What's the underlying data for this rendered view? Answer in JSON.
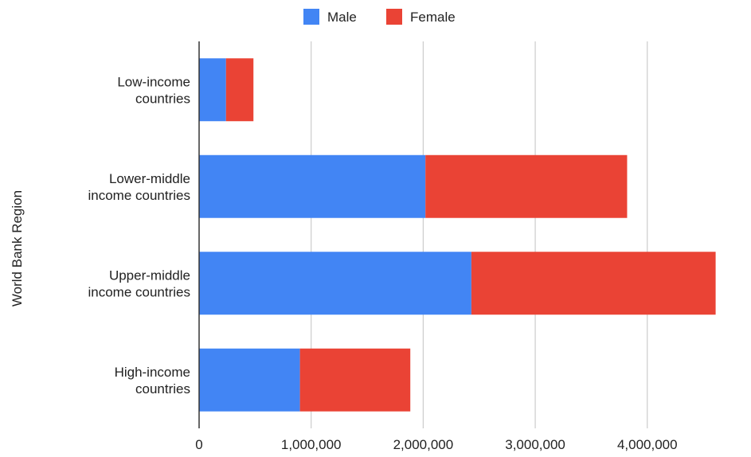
{
  "chart_data": {
    "type": "bar",
    "orientation": "horizontal",
    "stacked": true,
    "title": "",
    "xlabel": "",
    "ylabel": "World Bank Region",
    "categories": [
      [
        "Low-income",
        "countries"
      ],
      [
        "Lower-middle",
        "income countries"
      ],
      [
        "Upper-middle",
        "income countries"
      ],
      [
        "High-income",
        "countries"
      ]
    ],
    "series": [
      {
        "name": "Male",
        "color": "#4285f4",
        "values": [
          240000,
          2020000,
          2430000,
          900000
        ]
      },
      {
        "name": "Female",
        "color": "#ea4335",
        "values": [
          245000,
          1800000,
          2180000,
          985000
        ]
      }
    ],
    "xlim": [
      0,
      4620000
    ],
    "xticks": [
      0,
      1000000,
      2000000,
      3000000,
      4000000
    ],
    "xtick_labels": [
      "0",
      "1,000,000",
      "2,000,000",
      "3,000,000",
      "4,000,000"
    ],
    "grid": "vertical",
    "legend_position": "top-center"
  }
}
